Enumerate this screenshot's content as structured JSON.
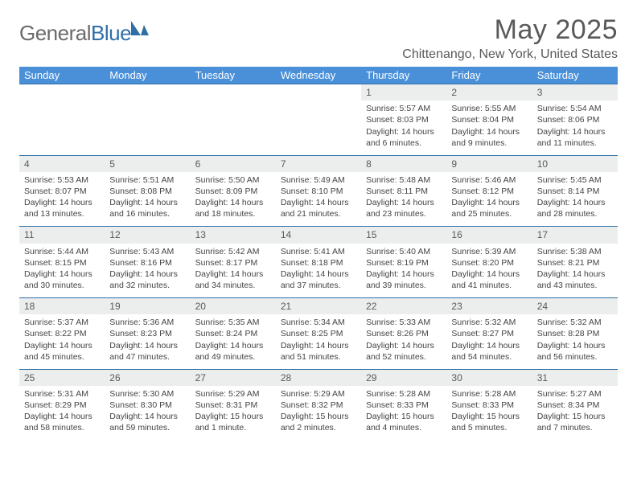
{
  "logo": {
    "general": "General",
    "blue": "Blue"
  },
  "title": "May 2025",
  "location": "Chittenango, New York, United States",
  "header_color": "#4a90d9",
  "accent_color": "#2f6fa7",
  "daynum_bg": "#eceded",
  "days": [
    "Sunday",
    "Monday",
    "Tuesday",
    "Wednesday",
    "Thursday",
    "Friday",
    "Saturday"
  ],
  "weeks": [
    [
      null,
      null,
      null,
      null,
      {
        "n": "1",
        "sr": "5:57 AM",
        "ss": "8:03 PM",
        "dl": "14 hours and 6 minutes."
      },
      {
        "n": "2",
        "sr": "5:55 AM",
        "ss": "8:04 PM",
        "dl": "14 hours and 9 minutes."
      },
      {
        "n": "3",
        "sr": "5:54 AM",
        "ss": "8:06 PM",
        "dl": "14 hours and 11 minutes."
      }
    ],
    [
      {
        "n": "4",
        "sr": "5:53 AM",
        "ss": "8:07 PM",
        "dl": "14 hours and 13 minutes."
      },
      {
        "n": "5",
        "sr": "5:51 AM",
        "ss": "8:08 PM",
        "dl": "14 hours and 16 minutes."
      },
      {
        "n": "6",
        "sr": "5:50 AM",
        "ss": "8:09 PM",
        "dl": "14 hours and 18 minutes."
      },
      {
        "n": "7",
        "sr": "5:49 AM",
        "ss": "8:10 PM",
        "dl": "14 hours and 21 minutes."
      },
      {
        "n": "8",
        "sr": "5:48 AM",
        "ss": "8:11 PM",
        "dl": "14 hours and 23 minutes."
      },
      {
        "n": "9",
        "sr": "5:46 AM",
        "ss": "8:12 PM",
        "dl": "14 hours and 25 minutes."
      },
      {
        "n": "10",
        "sr": "5:45 AM",
        "ss": "8:14 PM",
        "dl": "14 hours and 28 minutes."
      }
    ],
    [
      {
        "n": "11",
        "sr": "5:44 AM",
        "ss": "8:15 PM",
        "dl": "14 hours and 30 minutes."
      },
      {
        "n": "12",
        "sr": "5:43 AM",
        "ss": "8:16 PM",
        "dl": "14 hours and 32 minutes."
      },
      {
        "n": "13",
        "sr": "5:42 AM",
        "ss": "8:17 PM",
        "dl": "14 hours and 34 minutes."
      },
      {
        "n": "14",
        "sr": "5:41 AM",
        "ss": "8:18 PM",
        "dl": "14 hours and 37 minutes."
      },
      {
        "n": "15",
        "sr": "5:40 AM",
        "ss": "8:19 PM",
        "dl": "14 hours and 39 minutes."
      },
      {
        "n": "16",
        "sr": "5:39 AM",
        "ss": "8:20 PM",
        "dl": "14 hours and 41 minutes."
      },
      {
        "n": "17",
        "sr": "5:38 AM",
        "ss": "8:21 PM",
        "dl": "14 hours and 43 minutes."
      }
    ],
    [
      {
        "n": "18",
        "sr": "5:37 AM",
        "ss": "8:22 PM",
        "dl": "14 hours and 45 minutes."
      },
      {
        "n": "19",
        "sr": "5:36 AM",
        "ss": "8:23 PM",
        "dl": "14 hours and 47 minutes."
      },
      {
        "n": "20",
        "sr": "5:35 AM",
        "ss": "8:24 PM",
        "dl": "14 hours and 49 minutes."
      },
      {
        "n": "21",
        "sr": "5:34 AM",
        "ss": "8:25 PM",
        "dl": "14 hours and 51 minutes."
      },
      {
        "n": "22",
        "sr": "5:33 AM",
        "ss": "8:26 PM",
        "dl": "14 hours and 52 minutes."
      },
      {
        "n": "23",
        "sr": "5:32 AM",
        "ss": "8:27 PM",
        "dl": "14 hours and 54 minutes."
      },
      {
        "n": "24",
        "sr": "5:32 AM",
        "ss": "8:28 PM",
        "dl": "14 hours and 56 minutes."
      }
    ],
    [
      {
        "n": "25",
        "sr": "5:31 AM",
        "ss": "8:29 PM",
        "dl": "14 hours and 58 minutes."
      },
      {
        "n": "26",
        "sr": "5:30 AM",
        "ss": "8:30 PM",
        "dl": "14 hours and 59 minutes."
      },
      {
        "n": "27",
        "sr": "5:29 AM",
        "ss": "8:31 PM",
        "dl": "15 hours and 1 minute."
      },
      {
        "n": "28",
        "sr": "5:29 AM",
        "ss": "8:32 PM",
        "dl": "15 hours and 2 minutes."
      },
      {
        "n": "29",
        "sr": "5:28 AM",
        "ss": "8:33 PM",
        "dl": "15 hours and 4 minutes."
      },
      {
        "n": "30",
        "sr": "5:28 AM",
        "ss": "8:33 PM",
        "dl": "15 hours and 5 minutes."
      },
      {
        "n": "31",
        "sr": "5:27 AM",
        "ss": "8:34 PM",
        "dl": "15 hours and 7 minutes."
      }
    ]
  ],
  "labels": {
    "sunrise": "Sunrise: ",
    "sunset": "Sunset: ",
    "daylight": "Daylight: "
  }
}
